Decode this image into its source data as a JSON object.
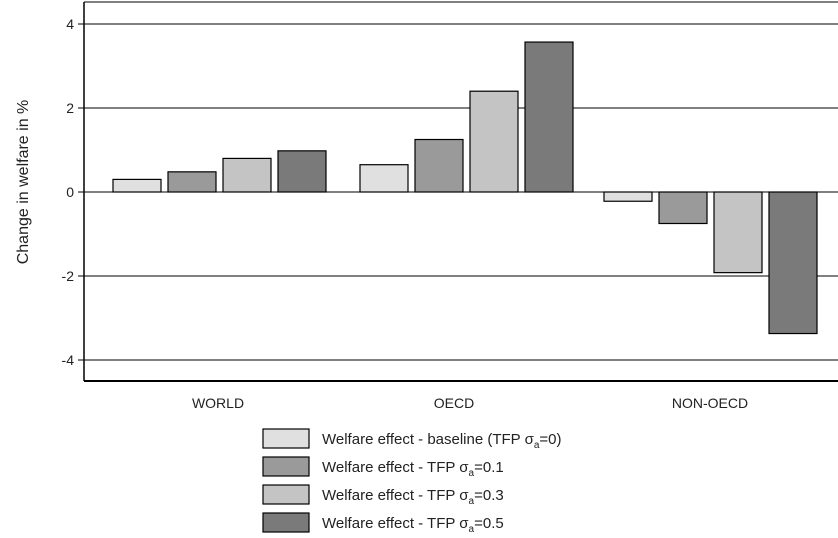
{
  "chart_data": {
    "type": "bar",
    "ylabel": "Change in welfare in %",
    "ylim": [
      -4.5,
      4.2
    ],
    "yticks": [
      4,
      2,
      0,
      -2,
      -4
    ],
    "ytick_labels": [
      "4",
      "2",
      "0",
      "-2",
      "-4"
    ],
    "grid": true,
    "legend_position": "bottom",
    "categories": [
      "WORLD",
      "OECD",
      "NON-OECD"
    ],
    "series": [
      {
        "name_prefix": "Welfare effect  - baseline (TFP σ",
        "name_sub": "a",
        "name_suffix": "=0)",
        "values": [
          0.3,
          0.65,
          -0.22
        ],
        "color": "#e0e0e0"
      },
      {
        "name_prefix": "Welfare effect  - TFP σ",
        "name_sub": "a",
        "name_suffix": "=0.1",
        "values": [
          0.48,
          1.25,
          -0.75
        ],
        "color": "#9a9a9a"
      },
      {
        "name_prefix": "Welfare effect  - TFP σ",
        "name_sub": "a",
        "name_suffix": "=0.3",
        "values": [
          0.8,
          2.4,
          -1.92
        ],
        "color": "#c4c4c4"
      },
      {
        "name_prefix": "Welfare effect  - TFP σ",
        "name_sub": "a",
        "name_suffix": "=0.5",
        "values": [
          0.98,
          3.57,
          -3.37
        ],
        "color": "#7a7a7a"
      }
    ]
  }
}
